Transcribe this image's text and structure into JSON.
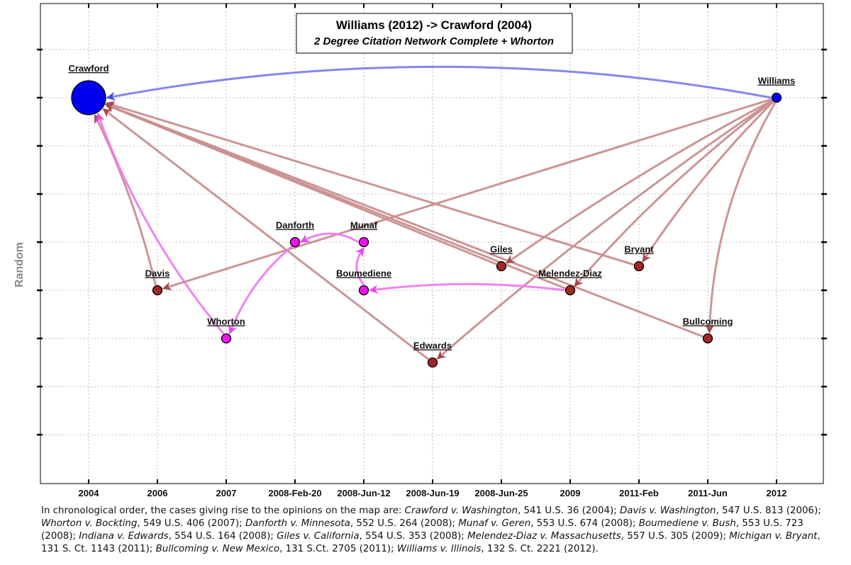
{
  "title": {
    "main": "Williams (2012) -> Crawford (2004)",
    "sub": "2 Degree Citation Network Complete + Whorton"
  },
  "y_axis_label": "Random",
  "x_ticks": [
    "2004",
    "2006",
    "2007",
    "2008-Feb-20",
    "2008-Jun-12",
    "2008-Jun-19",
    "2008-Jun-25",
    "2009",
    "2011-Feb",
    "2011-Jun",
    "2012"
  ],
  "colors": {
    "root": "#0000ee",
    "citing": "#a02828",
    "whorton_group": "#ee11ee",
    "edge_citing": "#c98f8f",
    "edge_whorton": "#f07cf0",
    "edge_root": "#8080f0"
  },
  "nodes": [
    {
      "id": "crawford",
      "label": "Crawford",
      "time": "2004",
      "rank": 8,
      "group": "root",
      "size": "large"
    },
    {
      "id": "williams",
      "label": "Williams",
      "time": "2012",
      "rank": 8,
      "group": "root",
      "size": "small"
    },
    {
      "id": "davis",
      "label": "Davis",
      "time": "2006",
      "rank": 4,
      "group": "citing",
      "size": "small"
    },
    {
      "id": "whorton",
      "label": "Whorton",
      "time": "2007",
      "rank": 3,
      "group": "whorton_group",
      "size": "small"
    },
    {
      "id": "danforth",
      "label": "Danforth",
      "time": "2008-Feb-20",
      "rank": 5,
      "group": "whorton_group",
      "size": "small"
    },
    {
      "id": "munaf",
      "label": "Munaf",
      "time": "2008-Jun-12",
      "rank": 5,
      "group": "whorton_group",
      "size": "small"
    },
    {
      "id": "boumediene",
      "label": "Boumediene",
      "time": "2008-Jun-12",
      "rank": 4,
      "group": "whorton_group",
      "size": "small"
    },
    {
      "id": "edwards",
      "label": "Edwards",
      "time": "2008-Jun-19",
      "rank": 2.5,
      "group": "citing",
      "size": "small"
    },
    {
      "id": "giles",
      "label": "Giles",
      "time": "2008-Jun-25",
      "rank": 4.5,
      "group": "citing",
      "size": "small"
    },
    {
      "id": "melendez",
      "label": "Melendez-Diaz",
      "time": "2009",
      "rank": 4,
      "group": "citing",
      "size": "small"
    },
    {
      "id": "bryant",
      "label": "Bryant",
      "time": "2011-Feb",
      "rank": 4.5,
      "group": "citing",
      "size": "small"
    },
    {
      "id": "bullcoming",
      "label": "Bullcoming",
      "time": "2011-Jun",
      "rank": 3,
      "group": "citing",
      "size": "small"
    }
  ],
  "edges": [
    {
      "from": "williams",
      "to": "crawford",
      "type": "root",
      "bend": 0.09
    },
    {
      "from": "davis",
      "to": "crawford",
      "type": "citing",
      "bend": 0.05
    },
    {
      "from": "whorton",
      "to": "crawford",
      "type": "whorton",
      "bend": -0.08
    },
    {
      "from": "edwards",
      "to": "crawford",
      "type": "citing",
      "bend": 0
    },
    {
      "from": "giles",
      "to": "crawford",
      "type": "citing",
      "bend": 0
    },
    {
      "from": "melendez",
      "to": "crawford",
      "type": "citing",
      "bend": 0
    },
    {
      "from": "bryant",
      "to": "crawford",
      "type": "citing",
      "bend": 0
    },
    {
      "from": "bullcoming",
      "to": "crawford",
      "type": "citing",
      "bend": 0
    },
    {
      "from": "williams",
      "to": "davis",
      "type": "citing",
      "bend": 0
    },
    {
      "from": "williams",
      "to": "giles",
      "type": "citing",
      "bend": 0.03
    },
    {
      "from": "williams",
      "to": "edwards",
      "type": "citing",
      "bend": 0.03
    },
    {
      "from": "williams",
      "to": "melendez",
      "type": "citing",
      "bend": 0.05
    },
    {
      "from": "williams",
      "to": "bryant",
      "type": "citing",
      "bend": 0.05
    },
    {
      "from": "williams",
      "to": "bullcoming",
      "type": "citing",
      "bend": 0.12
    },
    {
      "from": "danforth",
      "to": "whorton",
      "type": "whorton",
      "bend": 0.12
    },
    {
      "from": "munaf",
      "to": "danforth",
      "type": "whorton",
      "bend": 0.25
    },
    {
      "from": "boumediene",
      "to": "munaf",
      "type": "whorton",
      "bend": -0.3
    },
    {
      "from": "melendez",
      "to": "boumediene",
      "type": "whorton",
      "bend": 0.06
    }
  ],
  "caption": [
    {
      "t": "In chronological order, the cases giving rise to the opinions on the map are:  "
    },
    {
      "t": "Crawford v. Washington",
      "i": true
    },
    {
      "t": ", 541 U.S. 36 (2004);  "
    },
    {
      "t": "Davis v. Washington",
      "i": true
    },
    {
      "t": ", 547 U.S. 813 (2006);  "
    },
    {
      "t": "Whorton v. Bockting",
      "i": true
    },
    {
      "t": ", 549 U.S. 406 (2007);  "
    },
    {
      "t": "Danforth v. Minnesota",
      "i": true
    },
    {
      "t": ", 552 U.S. 264 (2008);  "
    },
    {
      "t": "Munaf v. Geren",
      "i": true
    },
    {
      "t": ", 553 U.S. 674 (2008);  "
    },
    {
      "t": "Boumediene v. Bush",
      "i": true
    },
    {
      "t": ", 553 U.S. 723 (2008);  "
    },
    {
      "t": "Indiana v. Edwards",
      "i": true
    },
    {
      "t": ", 554 U.S. 164 (2008);  "
    },
    {
      "t": "Giles v. California",
      "i": true
    },
    {
      "t": ", 554 U.S. 353 (2008);  "
    },
    {
      "t": "Melendez-Diaz v. Massachusetts",
      "i": true
    },
    {
      "t": ", 557 U.S. 305 (2009);  "
    },
    {
      "t": "Michigan v. Bryant",
      "i": true
    },
    {
      "t": ", 131 S. Ct. 1143 (2011);  "
    },
    {
      "t": "Bullcoming v. New Mexico",
      "i": true
    },
    {
      "t": ", 131 S.Ct. 2705 (2011);  "
    },
    {
      "t": "Williams v. Illinois",
      "i": true
    },
    {
      "t": ", 132 S. Ct. 2221 (2012)."
    }
  ]
}
